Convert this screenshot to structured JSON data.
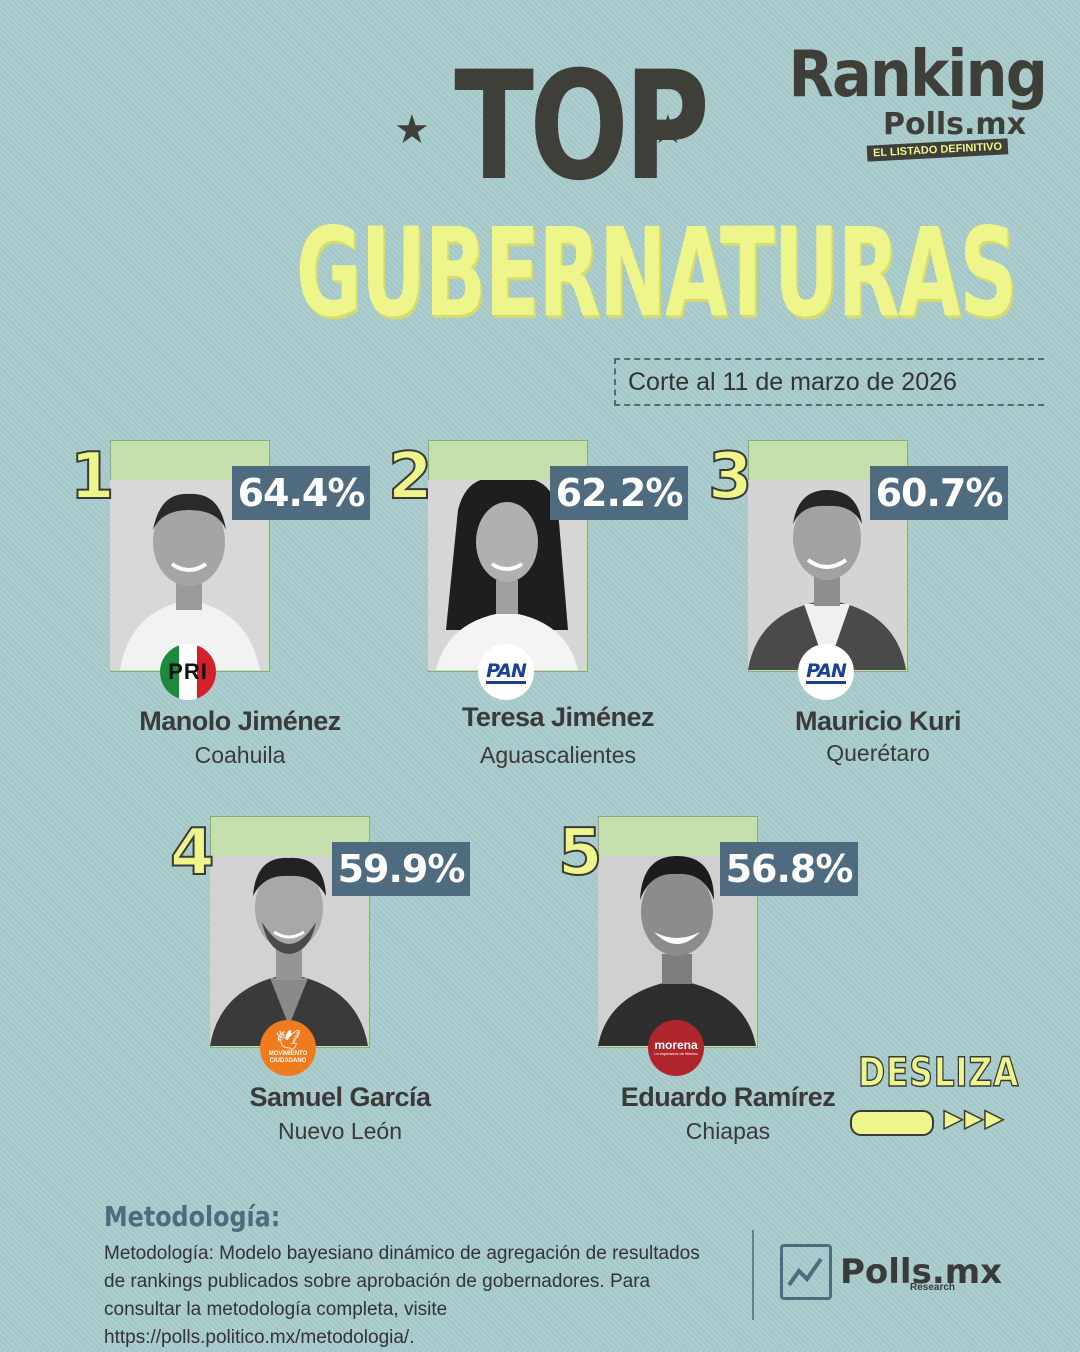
{
  "header": {
    "title_top": "TOP",
    "title_main": "GUBERNATURAS",
    "cutoff": "Corte al 11 de marzo de 2026"
  },
  "logo": {
    "ranking": "Ranking",
    "polls": "Polls.mx",
    "tagline": "EL LISTADO DEFINITIVO"
  },
  "candidates": [
    {
      "rank": "1",
      "percent": "64.4%",
      "name": "Manolo Jiménez",
      "state": "Coahuila",
      "party": "PRI"
    },
    {
      "rank": "2",
      "percent": "62.2%",
      "name": "Teresa Jiménez",
      "state": "Aguascalientes",
      "party": "PAN"
    },
    {
      "rank": "3",
      "percent": "60.7%",
      "name": "Mauricio Kuri",
      "state": "Querétaro",
      "party": "PAN"
    },
    {
      "rank": "4",
      "percent": "59.9%",
      "name": "Samuel García",
      "state": "Nuevo León",
      "party": "MOVIMIENTO CIUDADANO"
    },
    {
      "rank": "5",
      "percent": "56.8%",
      "name": "Eduardo Ramírez",
      "state": "Chiapas",
      "party": "morena"
    }
  ],
  "party_logos": {
    "pri": "PRI",
    "pan": "PAN",
    "mc_line1": "MOVIMIENTO",
    "mc_line2": "CIUDADANO",
    "morena": "morena",
    "morena_sub": "La esperanza de México"
  },
  "swipe": {
    "label": "DESLIZA",
    "arrows": "▶▶▶"
  },
  "methodology": {
    "title": "Metodología:",
    "text": "Metodología: Modelo bayesiano dinámico de agregación de resultados de rankings publicados sobre aprobación de gobernadores. Para consultar la metodología completa, visite https://polls.politico.mx/metodologia/."
  },
  "footer_logo": {
    "word": "Polls.mx",
    "research": "Research"
  },
  "colors": {
    "background": "#a9cccc",
    "title_yellow": "#eef58a",
    "badge_blue": "#4e6b80",
    "photo_green": "#c6e0ad",
    "dark": "#3a3a3a"
  }
}
